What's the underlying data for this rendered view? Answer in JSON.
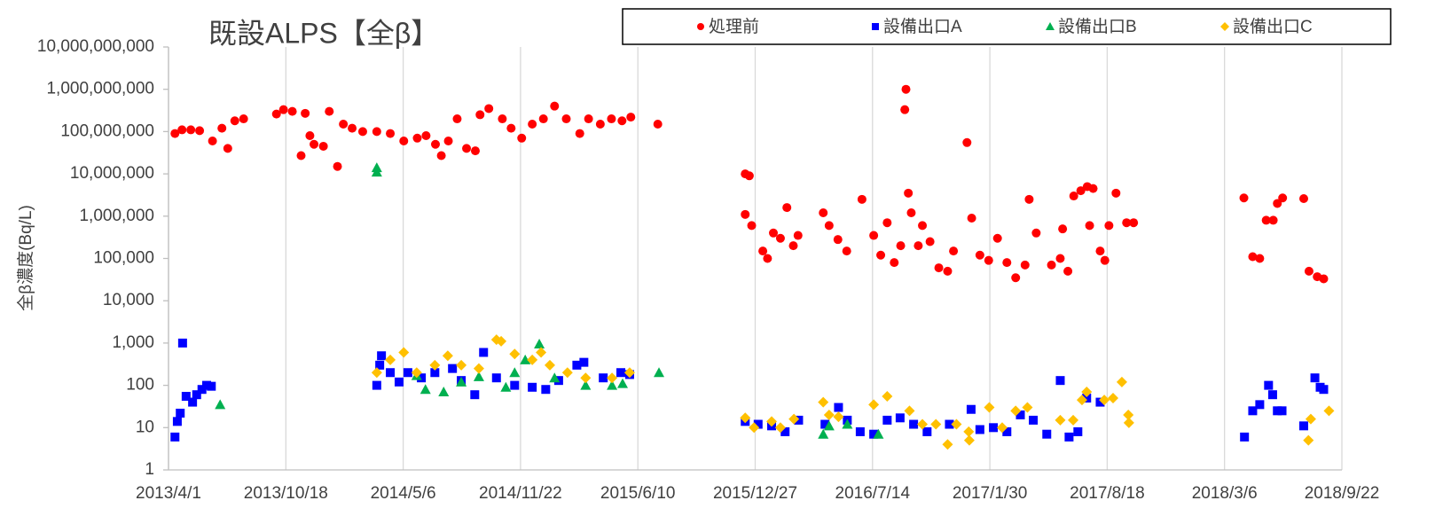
{
  "chart_data": {
    "type": "scatter",
    "title": "既設ALPS【全β】",
    "y_label": "全β濃度(Bq/L)",
    "log_y": true,
    "grid": "x",
    "legend": "top",
    "xlim": [
      "2013/4/1",
      "2018/9/22"
    ],
    "xticks": [
      "2013/4/1",
      "2013/10/18",
      "2014/5/6",
      "2014/11/22",
      "2015/6/10",
      "2015/12/27",
      "2016/7/14",
      "2017/1/30",
      "2017/8/18",
      "2018/3/6",
      "2018/9/22"
    ],
    "ylim": [
      1,
      10000000000
    ],
    "yticks": [
      1,
      10,
      100,
      {
        "value": 1000,
        "label": "1,000"
      },
      {
        "value": 10000,
        "label": "10,000"
      },
      {
        "value": 100000,
        "label": "100,000"
      },
      {
        "value": 1000000,
        "label": "1,000,000"
      },
      {
        "value": 10000000,
        "label": "10,000,000"
      },
      {
        "value": 100000000,
        "label": "100,000,000"
      },
      {
        "value": 1000000000,
        "label": "1,000,000,000"
      },
      {
        "value": 10000000000,
        "label": "10,000,000,000"
      }
    ],
    "series": [
      {
        "name": "処理前",
        "color": "#ff0000",
        "marker": "circle",
        "x": [
          "2013/4/12",
          "2013/4/24",
          "2013/5/9",
          "2013/5/24",
          "2013/6/15",
          "2013/7/1",
          "2013/7/11",
          "2013/7/23",
          "2013/8/7",
          "2013/10/2",
          "2013/10/14",
          "2013/10/29",
          "2013/11/13",
          "2013/11/20",
          "2013/11/28",
          "2013/12/5",
          "2013/12/21",
          "2013/12/31",
          "2014/1/14",
          "2014/1/24",
          "2014/2/8",
          "2014/2/26",
          "2014/3/22",
          "2014/4/14",
          "2014/5/7",
          "2014/5/30",
          "2014/6/14",
          "2014/6/30",
          "2014/7/10",
          "2014/7/22",
          "2014/8/6",
          "2014/8/22",
          "2014/9/6",
          "2014/9/14",
          "2014/9/29",
          "2014/10/22",
          "2014/11/6",
          "2014/11/24",
          "2014/12/12",
          "2014/12/31",
          "2015/1/19",
          "2015/2/8",
          "2015/3/3",
          "2015/3/18",
          "2015/4/7",
          "2015/4/26",
          "2015/5/14",
          "2015/5/29",
          "2015/7/14",
          "2015/12/10",
          "2015/12/17",
          "2015/12/10",
          "2015/12/21",
          "2016/1/9",
          "2016/1/17",
          "2016/1/27",
          "2016/2/8",
          "2016/2/19",
          "2016/3/1",
          "2016/3/9",
          "2016/4/21",
          "2016/5/1",
          "2016/5/16",
          "2016/5/31",
          "2016/6/26",
          "2016/7/16",
          "2016/7/28",
          "2016/8/8",
          "2016/8/20",
          "2016/8/31",
          "2016/9/7",
          "2016/9/9",
          "2016/9/13",
          "2016/9/18",
          "2016/9/30",
          "2016/10/7",
          "2016/10/20",
          "2016/11/4",
          "2016/11/19",
          "2016/11/29",
          "2016/12/22",
          "2016/12/30",
          "2017/1/13",
          "2017/1/28",
          "2017/2/12",
          "2017/2/28",
          "2017/3/15",
          "2017/3/31",
          "2017/4/7",
          "2017/4/19",
          "2017/5/15",
          "2017/5/30",
          "2017/6/3",
          "2017/6/12",
          "2017/6/22",
          "2017/7/4",
          "2017/7/15",
          "2017/7/19",
          "2017/7/25",
          "2017/8/6",
          "2017/8/14",
          "2017/8/21",
          "2017/9/2",
          "2017/9/20",
          "2017/10/2",
          "2018/4/8",
          "2018/4/23",
          "2018/5/5",
          "2018/5/16",
          "2018/5/28",
          "2018/6/4",
          "2018/6/13",
          "2018/7/19",
          "2018/7/28",
          "2018/8/11",
          "2018/8/22"
        ],
        "values": [
          90000000,
          110000000,
          110000000,
          105000000,
          60000000,
          120000000,
          40000000,
          180000000,
          200000000,
          260000000,
          330000000,
          300000000,
          27000000,
          270000000,
          80000000,
          50000000,
          45000000,
          300000000,
          15000000,
          150000000,
          120000000,
          100000000,
          100000000,
          90000000,
          60000000,
          70000000,
          80000000,
          50000000,
          27000000,
          60000000,
          200000000,
          40000000,
          35000000,
          250000000,
          350000000,
          200000000,
          120000000,
          70000000,
          150000000,
          200000000,
          400000000,
          200000000,
          90000000,
          200000000,
          150000000,
          200000000,
          180000000,
          220000000,
          150000000,
          10000000,
          9000000,
          1100000,
          600000,
          150000,
          100000,
          400000,
          300000,
          1600000,
          200000,
          350000,
          1200000,
          600000,
          280000,
          150000,
          2500000,
          350000,
          120000,
          700000,
          80000,
          200000,
          330000000,
          1000000000,
          3500000,
          1200000,
          200000,
          600000,
          250000,
          60000,
          50000,
          150000,
          55000000,
          900000,
          120000,
          90000,
          300000,
          80000,
          35000,
          70000,
          2500000,
          400000,
          70000,
          100000,
          500000,
          50000,
          3000000,
          4000000,
          5000000,
          600000,
          4500000,
          150000,
          90000,
          600000,
          3500000,
          700000,
          700000,
          2700000,
          110000,
          100000,
          800000,
          800000,
          2000000,
          2700000,
          2600000,
          50000,
          37000,
          33000
        ]
      },
      {
        "name": "設備出口A",
        "color": "#0000ff",
        "marker": "square",
        "x": [
          "2013/4/12",
          "2013/4/16",
          "2013/4/21",
          "2013/4/25",
          "2013/5/1",
          "2013/5/12",
          "2013/5/19",
          "2013/5/28",
          "2013/6/5",
          "2013/6/13",
          "2014/3/22",
          "2014/3/27",
          "2014/3/30",
          "2014/4/14",
          "2014/4/29",
          "2014/5/14",
          "2014/6/6",
          "2014/6/29",
          "2014/7/29",
          "2014/8/13",
          "2014/9/5",
          "2014/9/20",
          "2014/10/12",
          "2014/11/12",
          "2014/12/12",
          "2015/1/4",
          "2015/1/26",
          "2015/2/26",
          "2015/3/10",
          "2015/4/12",
          "2015/5/12",
          "2015/5/27",
          "2015/12/10",
          "2016/1/1",
          "2016/1/24",
          "2016/2/16",
          "2016/3/10",
          "2016/4/24",
          "2016/5/17",
          "2016/6/1",
          "2016/6/23",
          "2016/7/16",
          "2016/8/8",
          "2016/8/30",
          "2016/9/22",
          "2016/10/15",
          "2016/11/22",
          "2016/12/29",
          "2017/1/13",
          "2017/2/5",
          "2017/2/28",
          "2017/3/23",
          "2017/4/14",
          "2017/5/7",
          "2017/5/30",
          "2017/6/14",
          "2017/6/29",
          "2017/7/14",
          "2017/8/6",
          "2018/4/9",
          "2018/4/23",
          "2018/5/5",
          "2018/5/20",
          "2018/5/27",
          "2018/6/4",
          "2018/6/12",
          "2018/7/19",
          "2018/8/7",
          "2018/8/16",
          "2018/8/22"
        ],
        "values": [
          6,
          14,
          22,
          1000,
          55,
          40,
          60,
          80,
          100,
          95,
          100,
          300,
          500,
          200,
          120,
          200,
          150,
          200,
          250,
          130,
          60,
          600,
          150,
          100,
          90,
          80,
          130,
          300,
          350,
          150,
          200,
          180,
          14,
          12,
          11,
          8,
          15,
          12,
          30,
          15,
          8,
          7,
          15,
          17,
          12,
          8,
          12,
          27,
          9,
          10,
          8,
          20,
          15,
          7,
          130,
          6,
          8,
          50,
          40,
          6,
          25,
          35,
          100,
          60,
          25,
          25,
          11,
          150,
          90,
          80
        ]
      },
      {
        "name": "設備出口B",
        "color": "#00b050",
        "marker": "triangle",
        "x": [
          "2013/6/28",
          "2014/3/22",
          "2014/3/22",
          "2014/5/29",
          "2014/6/13",
          "2014/7/14",
          "2014/8/13",
          "2014/9/12",
          "2014/10/28",
          "2014/11/12",
          "2014/11/30",
          "2014/12/24",
          "2015/1/19",
          "2015/3/13",
          "2015/4/27",
          "2015/5/15",
          "2015/7/16",
          "2016/4/21",
          "2016/5/1",
          "2016/6/1",
          "2016/7/24"
        ],
        "values": [
          35,
          11000000,
          14000000,
          170,
          80,
          70,
          120,
          160,
          90,
          200,
          400,
          950,
          150,
          100,
          100,
          110,
          200,
          7,
          11,
          12,
          7
        ]
      },
      {
        "name": "設備出口C",
        "color": "#ffc000",
        "marker": "diamond",
        "x": [
          "2014/3/22",
          "2014/4/14",
          "2014/5/7",
          "2014/5/29",
          "2014/6/29",
          "2014/7/21",
          "2014/8/13",
          "2014/9/12",
          "2014/10/12",
          "2014/10/20",
          "2014/11/12",
          "2014/12/12",
          "2014/12/27",
          "2015/1/11",
          "2015/2/10",
          "2015/3/13",
          "2015/4/27",
          "2015/5/27",
          "2015/12/10",
          "2015/12/25",
          "2016/1/24",
          "2016/2/8",
          "2016/3/2",
          "2016/4/21",
          "2016/5/1",
          "2016/5/17",
          "2016/7/16",
          "2016/8/8",
          "2016/9/15",
          "2016/10/7",
          "2016/10/30",
          "2016/11/19",
          "2016/12/4",
          "2016/12/25",
          "2016/12/26",
          "2017/1/29",
          "2017/2/20",
          "2017/3/15",
          "2017/4/4",
          "2017/5/30",
          "2017/6/21",
          "2017/7/6",
          "2017/7/14",
          "2017/8/13",
          "2017/8/28",
          "2017/9/12",
          "2017/9/23",
          "2017/9/24",
          "2018/7/27",
          "2018/7/31",
          "2018/8/31"
        ],
        "values": [
          200,
          400,
          600,
          200,
          300,
          500,
          300,
          250,
          1200,
          1100,
          550,
          400,
          600,
          300,
          200,
          150,
          150,
          200,
          17,
          10,
          14,
          10,
          16,
          40,
          20,
          18,
          35,
          55,
          25,
          12,
          12,
          4,
          12,
          8,
          5,
          30,
          10,
          25,
          30,
          15,
          15,
          45,
          70,
          45,
          50,
          120,
          20,
          13,
          5,
          16,
          25
        ]
      }
    ]
  }
}
